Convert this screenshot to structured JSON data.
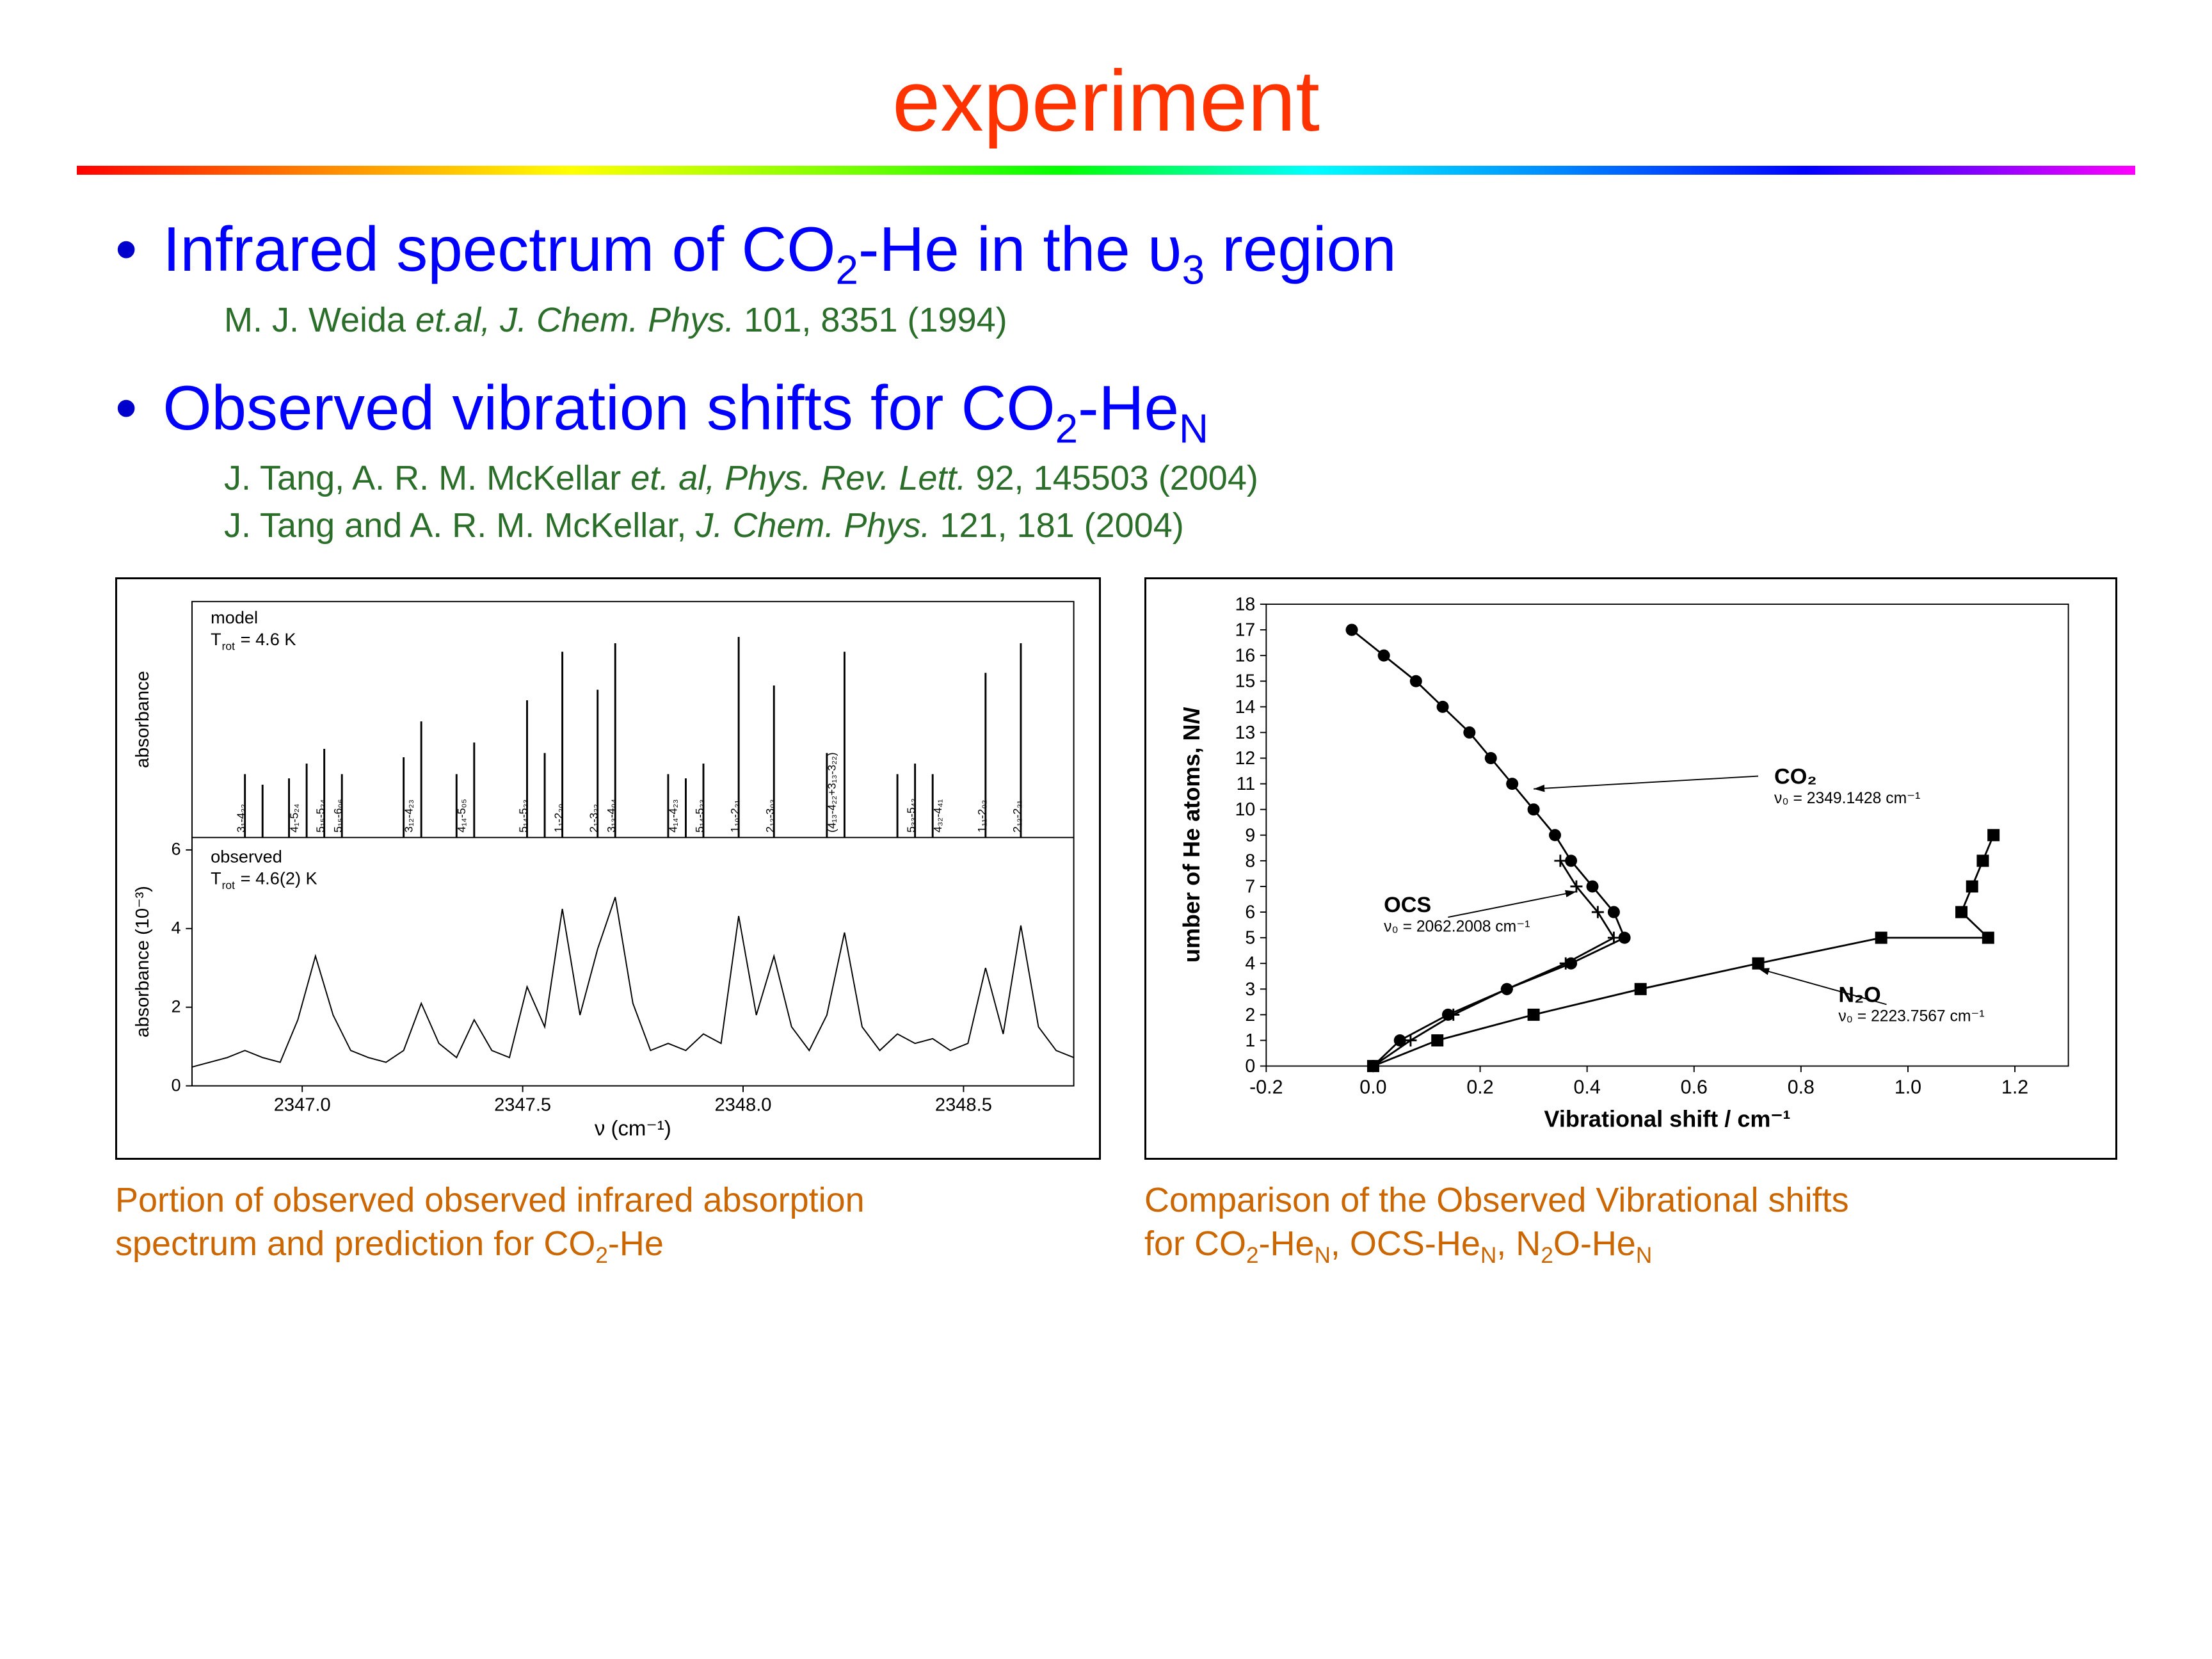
{
  "title": "experiment",
  "bullet1": {
    "pre": "Infrared spectrum of CO",
    "sub1": "2",
    "mid": "-He in the υ",
    "sub2": "3",
    "post": " region"
  },
  "citation1": {
    "author": "M. J. Weida ",
    "etal": "et.al",
    "journal": ", J. Chem. Phys.",
    "rest": " 101, 8351 (1994)"
  },
  "bullet2": {
    "pre": "Observed vibration shifts for CO",
    "sub1": "2",
    "mid": "-He",
    "sub2": "N"
  },
  "citation2": {
    "author": "J. Tang, A. R. M. McKellar ",
    "etal": "et. al",
    "journal": ", Phys. Rev. Lett.",
    "rest": " 92, 145503 (2004)"
  },
  "citation3": {
    "author": "J. Tang and A. R. M. McKellar, ",
    "journal": "J. Chem. Phys.",
    "rest": " 121, 181 (2004)"
  },
  "left_chart": {
    "type": "spectrum",
    "top_panel": {
      "label1": "model",
      "label2": "T_rot = 4.6 K",
      "ylabel": "absorbance",
      "peaks": [
        {
          "x": 0.06,
          "h": 0.3
        },
        {
          "x": 0.08,
          "h": 0.25
        },
        {
          "x": 0.11,
          "h": 0.28
        },
        {
          "x": 0.13,
          "h": 0.35
        },
        {
          "x": 0.15,
          "h": 0.42
        },
        {
          "x": 0.17,
          "h": 0.3
        },
        {
          "x": 0.24,
          "h": 0.38
        },
        {
          "x": 0.26,
          "h": 0.55
        },
        {
          "x": 0.3,
          "h": 0.3
        },
        {
          "x": 0.32,
          "h": 0.45
        },
        {
          "x": 0.38,
          "h": 0.65
        },
        {
          "x": 0.4,
          "h": 0.4
        },
        {
          "x": 0.42,
          "h": 0.88
        },
        {
          "x": 0.46,
          "h": 0.7
        },
        {
          "x": 0.48,
          "h": 0.92
        },
        {
          "x": 0.54,
          "h": 0.3
        },
        {
          "x": 0.56,
          "h": 0.28
        },
        {
          "x": 0.58,
          "h": 0.35
        },
        {
          "x": 0.62,
          "h": 0.95
        },
        {
          "x": 0.66,
          "h": 0.72
        },
        {
          "x": 0.72,
          "h": 0.4
        },
        {
          "x": 0.74,
          "h": 0.88
        },
        {
          "x": 0.8,
          "h": 0.3
        },
        {
          "x": 0.82,
          "h": 0.35
        },
        {
          "x": 0.84,
          "h": 0.3
        },
        {
          "x": 0.9,
          "h": 0.78
        },
        {
          "x": 0.94,
          "h": 0.92
        }
      ],
      "annotations": [
        {
          "x": 0.06,
          "text": "3₁-4₂₂"
        },
        {
          "x": 0.12,
          "text": "4₁-5₂₄"
        },
        {
          "x": 0.15,
          "text": "5₁₅-5₂₄"
        },
        {
          "x": 0.17,
          "text": "5₁₅-6₀₆"
        },
        {
          "x": 0.25,
          "text": "3₁₂-4₂₃"
        },
        {
          "x": 0.31,
          "text": "4₁₄-5₀₅"
        },
        {
          "x": 0.38,
          "text": "5₁₄-5₂₃"
        },
        {
          "x": 0.42,
          "text": "1₁-2₂₀"
        },
        {
          "x": 0.46,
          "text": "2₁-3₂₂"
        },
        {
          "x": 0.48,
          "text": "3₁₃-4₀₄"
        },
        {
          "x": 0.55,
          "text": "4₁₄-4₂₃"
        },
        {
          "x": 0.58,
          "text": "5₁₄-5₂₃"
        },
        {
          "x": 0.62,
          "text": "1₁₀-2₂₁"
        },
        {
          "x": 0.66,
          "text": "2₁₂-3₀₃"
        },
        {
          "x": 0.73,
          "text": "(4₁₃-4₂₂+3₁₃-3₂₂)"
        },
        {
          "x": 0.82,
          "text": "5₃₃-5₄₂"
        },
        {
          "x": 0.85,
          "text": "4₃₂-4₄₁"
        },
        {
          "x": 0.9,
          "text": "1₁₁-2₀₂"
        },
        {
          "x": 0.94,
          "text": "2₁₂-2₂₁"
        }
      ]
    },
    "bottom_panel": {
      "label1": "observed",
      "label2": "T_rot = 4.6(2) K",
      "ylabel": "absorbance (10⁻³)",
      "yticks": [
        "0",
        "2",
        "4",
        "6"
      ],
      "xticks": [
        "2347.0",
        "2347.5",
        "2348.0",
        "2348.5"
      ],
      "xlabel": "ν (cm⁻¹)",
      "spectrum_x": [
        0,
        0.02,
        0.04,
        0.06,
        0.08,
        0.1,
        0.12,
        0.14,
        0.16,
        0.18,
        0.2,
        0.22,
        0.24,
        0.26,
        0.28,
        0.3,
        0.32,
        0.34,
        0.36,
        0.38,
        0.4,
        0.42,
        0.44,
        0.46,
        0.48,
        0.5,
        0.52,
        0.54,
        0.56,
        0.58,
        0.6,
        0.62,
        0.64,
        0.66,
        0.68,
        0.7,
        0.72,
        0.74,
        0.76,
        0.78,
        0.8,
        0.82,
        0.84,
        0.86,
        0.88,
        0.9,
        0.92,
        0.94,
        0.96,
        0.98,
        1.0
      ],
      "spectrum_y": [
        0.08,
        0.1,
        0.12,
        0.15,
        0.12,
        0.1,
        0.28,
        0.55,
        0.3,
        0.15,
        0.12,
        0.1,
        0.15,
        0.35,
        0.18,
        0.12,
        0.28,
        0.15,
        0.12,
        0.42,
        0.25,
        0.75,
        0.3,
        0.58,
        0.8,
        0.35,
        0.15,
        0.18,
        0.15,
        0.22,
        0.18,
        0.72,
        0.3,
        0.55,
        0.25,
        0.15,
        0.3,
        0.65,
        0.25,
        0.15,
        0.22,
        0.18,
        0.2,
        0.15,
        0.18,
        0.5,
        0.22,
        0.68,
        0.25,
        0.15,
        0.12
      ]
    },
    "colors": {
      "line": "#000000",
      "bg": "#ffffff"
    }
  },
  "right_chart": {
    "type": "line-marker",
    "xlabel": "Vibrational shift / cm⁻¹",
    "ylabel": "Number of He atoms, N",
    "xlim": [
      -0.2,
      1.3
    ],
    "ylim": [
      0,
      18
    ],
    "xticks": [
      -0.2,
      0.0,
      0.2,
      0.4,
      0.6,
      0.8,
      1.0,
      1.2
    ],
    "yticks": [
      0,
      1,
      2,
      3,
      4,
      5,
      6,
      7,
      8,
      9,
      10,
      11,
      12,
      13,
      14,
      15,
      16,
      17,
      18
    ],
    "colors": {
      "line": "#000000",
      "marker": "#000000",
      "bg": "#ffffff"
    },
    "series": {
      "CO2": {
        "marker": "circle",
        "label": "CO₂",
        "nu0": "ν₀ = 2349.1428 cm⁻¹",
        "points": [
          [
            0,
            0
          ],
          [
            0.05,
            1
          ],
          [
            0.14,
            2
          ],
          [
            0.25,
            3
          ],
          [
            0.37,
            4
          ],
          [
            0.47,
            5
          ],
          [
            0.45,
            6
          ],
          [
            0.41,
            7
          ],
          [
            0.37,
            8
          ],
          [
            0.34,
            9
          ],
          [
            0.3,
            10
          ],
          [
            0.26,
            11
          ],
          [
            0.22,
            12
          ],
          [
            0.18,
            13
          ],
          [
            0.13,
            14
          ],
          [
            0.08,
            15
          ],
          [
            0.02,
            16
          ],
          [
            -0.04,
            17
          ]
        ]
      },
      "OCS": {
        "marker": "plus",
        "label": "OCS",
        "nu0": "ν₀ = 2062.2008 cm⁻¹",
        "points": [
          [
            0,
            0
          ],
          [
            0.07,
            1
          ],
          [
            0.15,
            2
          ],
          [
            0.25,
            3
          ],
          [
            0.36,
            4
          ],
          [
            0.45,
            5
          ],
          [
            0.42,
            6
          ],
          [
            0.38,
            7
          ],
          [
            0.35,
            8
          ]
        ]
      },
      "N2O": {
        "marker": "square",
        "label": "N₂O",
        "nu0": "ν₀ = 2223.7567 cm⁻¹",
        "points": [
          [
            0,
            0
          ],
          [
            0.12,
            1
          ],
          [
            0.3,
            2
          ],
          [
            0.5,
            3
          ],
          [
            0.72,
            4
          ],
          [
            0.95,
            5
          ],
          [
            1.15,
            5
          ],
          [
            1.1,
            6
          ],
          [
            1.12,
            7
          ],
          [
            1.14,
            8
          ],
          [
            1.16,
            9
          ]
        ]
      }
    },
    "arrow_CO2": {
      "from": [
        0.72,
        11.3
      ],
      "to": [
        0.3,
        10.8
      ]
    },
    "arrow_OCS": {
      "from": [
        0.14,
        5.8
      ],
      "to": [
        0.38,
        6.8
      ]
    },
    "arrow_N2O": {
      "from": [
        0.96,
        2.4
      ],
      "to": [
        0.72,
        3.8
      ]
    },
    "label_CO2_pos": [
      0.75,
      11
    ],
    "label_OCS_pos": [
      0.02,
      6
    ],
    "label_N2O_pos": [
      0.87,
      2.5
    ]
  },
  "caption_left": {
    "l1": "Portion of observed observed infrared absorption",
    "l2_pre": "spectrum and prediction for CO",
    "l2_sub1": "2",
    "l2_mid": "-He"
  },
  "caption_right": {
    "l1": "Comparison of the Observed Vibrational shifts",
    "l2_pre": "for CO",
    "l2_s1": "2",
    "l2_m1": "-He",
    "l2_s2": "N",
    "l2_m2": ", OCS-He",
    "l2_s3": "N",
    "l2_m3": ", N",
    "l2_s4": "2",
    "l2_m4": "O-He",
    "l2_s5": "N"
  }
}
